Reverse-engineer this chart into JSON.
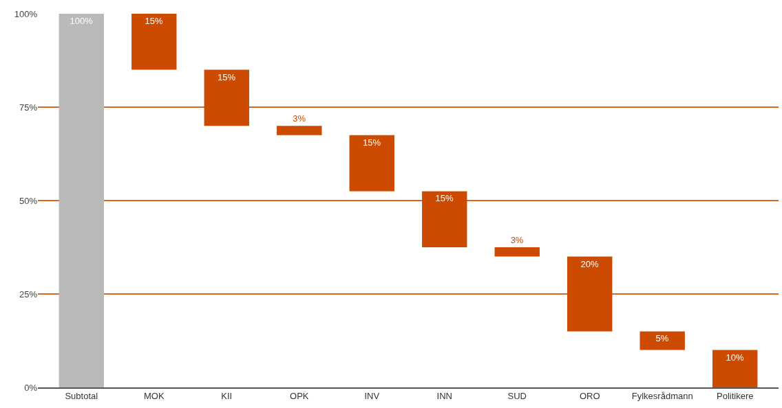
{
  "chart_data": {
    "type": "bar",
    "categories": [
      "Subtotal",
      "MOK",
      "KII",
      "OPK",
      "INV",
      "INN",
      "SUD",
      "ORO",
      "Fylkesrådmann",
      "Politikere"
    ],
    "values": [
      100,
      15,
      15,
      2.5,
      15,
      15,
      2.5,
      20,
      5,
      10
    ],
    "base": [
      0,
      85,
      70,
      67.5,
      52.5,
      37.5,
      35,
      15,
      10,
      0
    ],
    "colors": [
      "#bababa",
      "#cc4b00",
      "#cc4b00",
      "#cc4b00",
      "#cc4b00",
      "#cc4b00",
      "#cc4b00",
      "#cc4b00",
      "#cc4b00",
      "#cc4b00"
    ],
    "value_labels": [
      "100%",
      "15%",
      "15%",
      "3%",
      "15%",
      "15%",
      "3%",
      "20%",
      "5%",
      "10%"
    ],
    "ylim": [
      0,
      100
    ],
    "yticks": [
      {
        "value": 0,
        "label": "0%"
      },
      {
        "value": 25,
        "label": "25%"
      },
      {
        "value": 50,
        "label": "50%"
      },
      {
        "value": 75,
        "label": "75%"
      },
      {
        "value": 100,
        "label": "100%"
      }
    ],
    "grid": "y"
  }
}
